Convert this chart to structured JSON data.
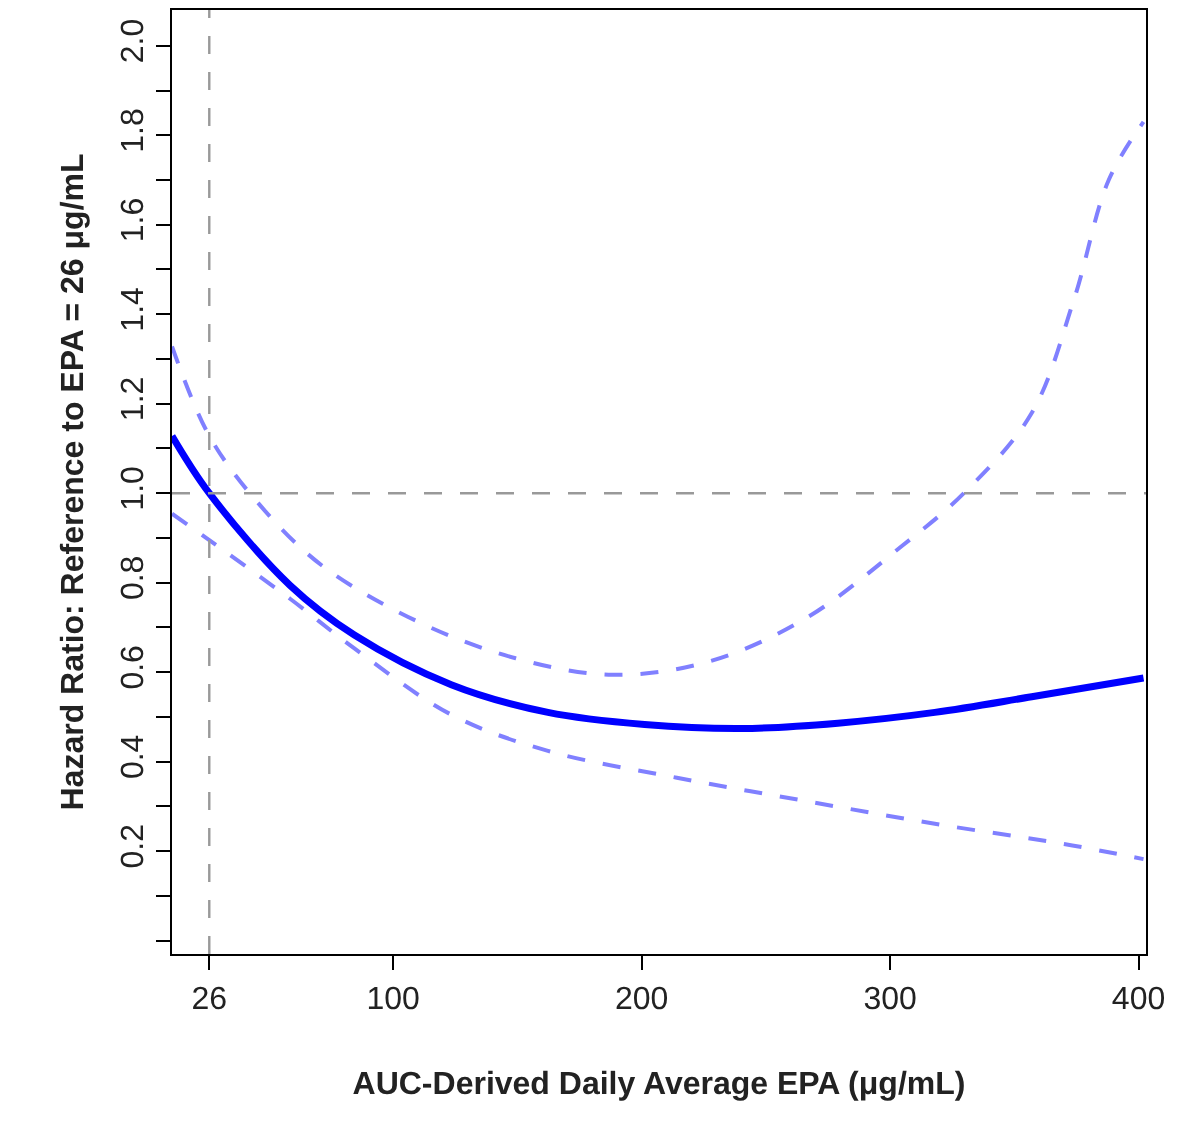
{
  "chart_data": {
    "type": "line",
    "xlabel": "AUC-Derived Daily Average EPA (μg/mL)",
    "ylabel": "Hazard Ratio: Reference to EPA = 26 μg/mL",
    "xlim": [
      11,
      403
    ],
    "xticks": [
      26,
      100,
      200,
      300,
      400
    ],
    "ylim": [
      -0.03,
      2.08
    ],
    "yticks": [
      {
        "value": 0.0,
        "label": null
      },
      {
        "value": 0.1,
        "label": null
      },
      0.2,
      {
        "value": 0.3,
        "label": null
      },
      0.4,
      {
        "value": 0.5,
        "label": null
      },
      0.6,
      {
        "value": 0.7,
        "label": null
      },
      0.8,
      {
        "value": 0.9,
        "label": null
      },
      {
        "value": 1.0,
        "label": "1.0"
      },
      {
        "value": 1.1,
        "label": null
      },
      1.2,
      {
        "value": 1.3,
        "label": null
      },
      1.4,
      {
        "value": 1.5,
        "label": null
      },
      1.6,
      {
        "value": 1.7,
        "label": null
      },
      1.8,
      {
        "value": 1.9,
        "label": null
      },
      {
        "value": 2.0,
        "label": "2.0"
      }
    ],
    "marker": "none",
    "series": [
      {
        "color": "#0000ff",
        "line_style": "solid",
        "x": [
          11,
          26,
          58.5,
          84.4,
          123.4,
          162.3,
          201.2,
          240.2,
          279,
          318,
          357,
          402
        ],
        "values": [
          1.128,
          1.0,
          0.794,
          0.683,
          0.572,
          0.51,
          0.483,
          0.474,
          0.486,
          0.51,
          0.545,
          0.587
        ]
      },
      {
        "color": "#8080ff",
        "line_style": "dashed",
        "x": [
          11,
          26,
          45.5,
          71.2,
          110.3,
          149.3,
          188.2,
          227.2,
          266,
          305,
          329.7,
          357,
          373.9,
          388,
          402
        ],
        "values": [
          1.328,
          1.128,
          0.979,
          0.839,
          0.712,
          0.631,
          0.594,
          0.624,
          0.72,
          0.883,
          1.0,
          1.179,
          1.431,
          1.7,
          1.83
        ]
      },
      {
        "color": "#8080ff",
        "line_style": "dashed",
        "x": [
          11,
          26,
          58.5,
          84.4,
          123.4,
          162.3,
          214.2,
          266,
          318,
          370,
          402
        ],
        "values": [
          0.954,
          0.895,
          0.764,
          0.653,
          0.505,
          0.424,
          0.364,
          0.312,
          0.261,
          0.216,
          0.182
        ]
      }
    ],
    "ref_lines": [
      {
        "axis": "x",
        "value": 26,
        "color": "#999999",
        "line_style": "dashed"
      },
      {
        "axis": "y",
        "value": 1.0,
        "color": "#999999",
        "line_style": "dashed"
      }
    ]
  }
}
